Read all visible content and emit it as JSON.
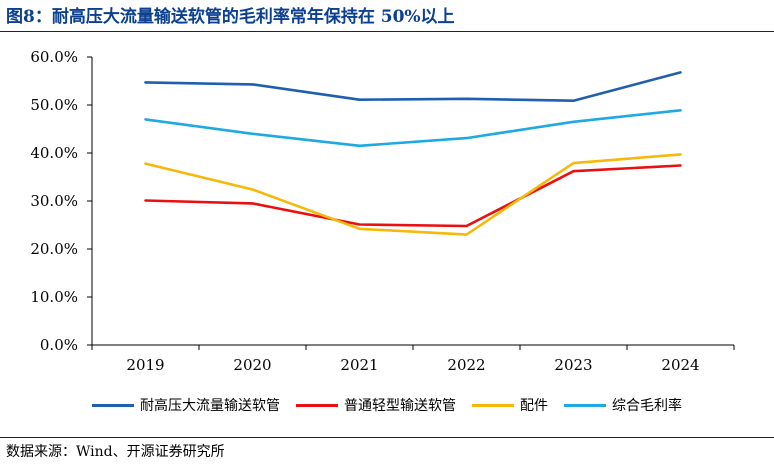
{
  "header": {
    "title": "图8：耐高压大流量输送软管的毛利率常年保持在 50%以上"
  },
  "footer": {
    "source": "数据来源：Wind、开源证券研究所"
  },
  "chart_data": {
    "type": "line",
    "title": "",
    "xlabel": "",
    "ylabel": "",
    "x": [
      "2019",
      "2020",
      "2021",
      "2022",
      "2023",
      "2024"
    ],
    "ylim": [
      0,
      60
    ],
    "yticks": [
      "0.0%",
      "10.0%",
      "20.0%",
      "30.0%",
      "40.0%",
      "50.0%",
      "60.0%"
    ],
    "grid": false,
    "legend_position": "bottom",
    "series": [
      {
        "name": "耐高压大流量输送软管",
        "color": "#1f5fae",
        "values": [
          54.7,
          54.3,
          51.1,
          51.3,
          50.9,
          56.8
        ]
      },
      {
        "name": "普通轻型输送软管",
        "color": "#e81010",
        "values": [
          30.1,
          29.5,
          25.1,
          24.8,
          36.2,
          37.4
        ]
      },
      {
        "name": "配件",
        "color": "#f5b90a",
        "values": [
          37.8,
          32.4,
          24.2,
          23.0,
          37.9,
          39.7
        ]
      },
      {
        "name": "综合毛利率",
        "color": "#1fa9e3",
        "values": [
          47.0,
          44.0,
          41.5,
          43.1,
          46.5,
          48.9
        ]
      }
    ]
  }
}
